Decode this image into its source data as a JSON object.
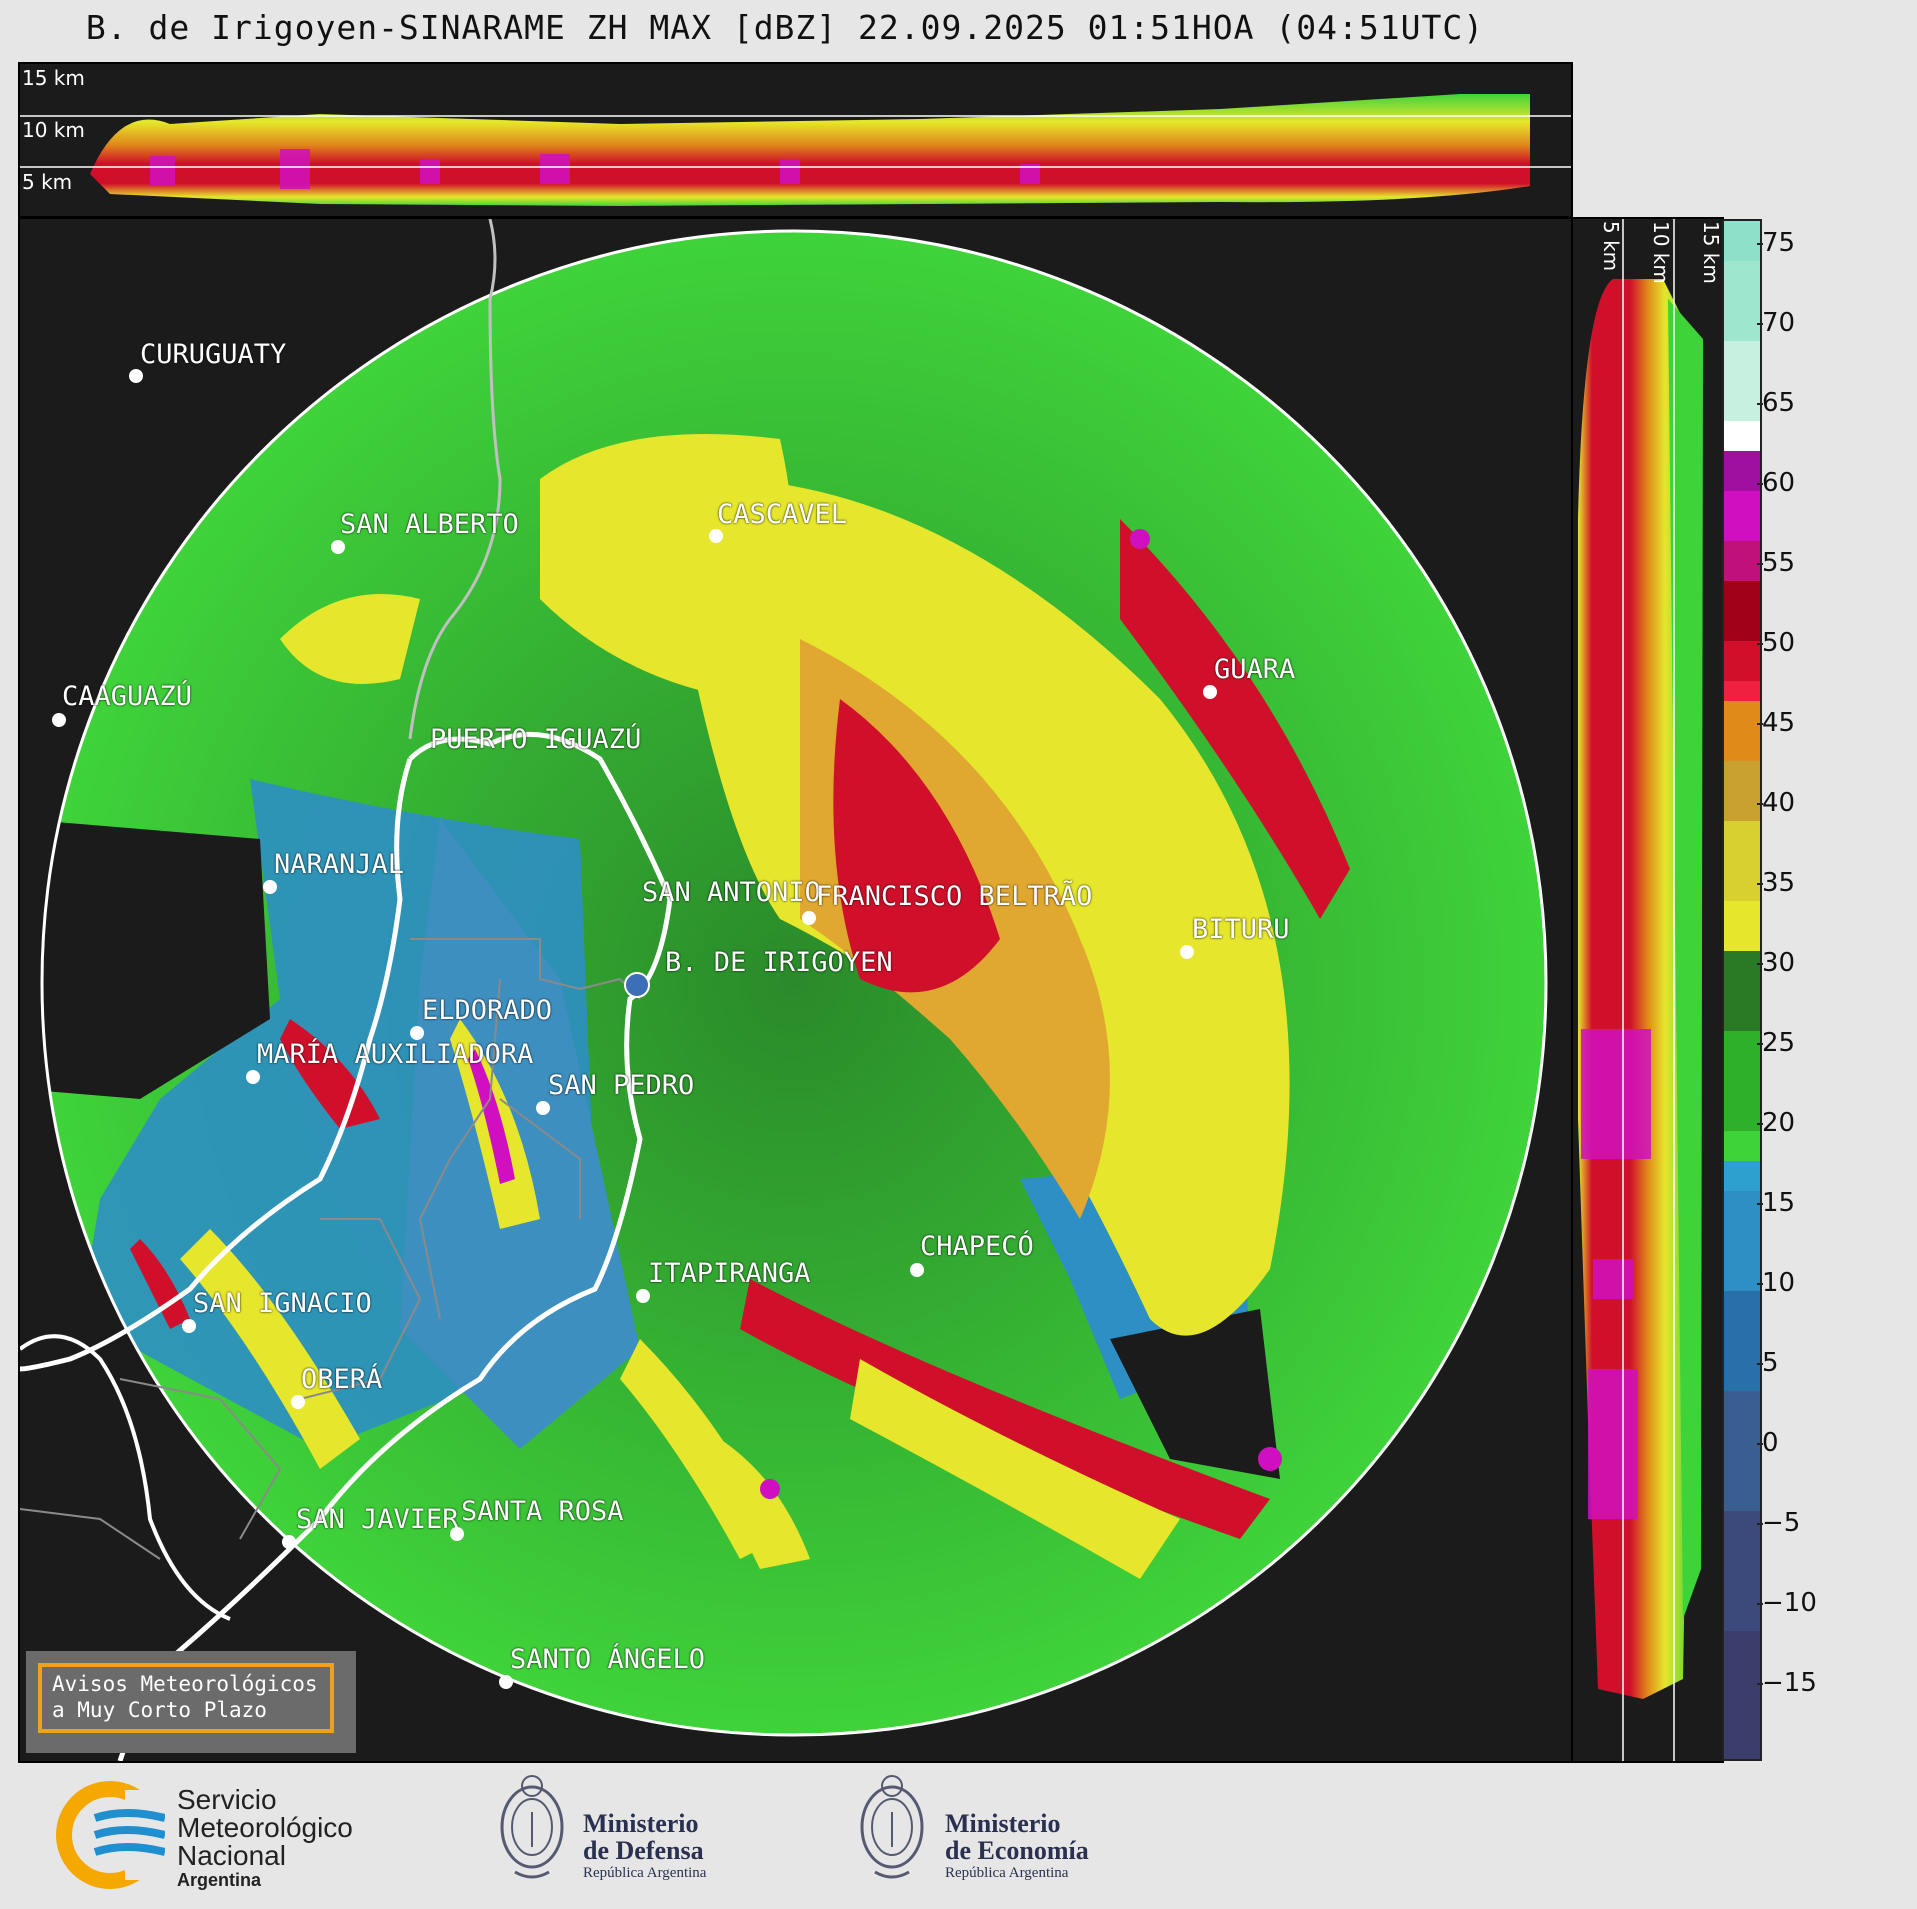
{
  "title": "B. de Irigoyen-SINARAME ZH MAX [dBZ] 22.09.2025 01:51HOA (04:51UTC)",
  "top_panel": {
    "height_labels": [
      "15 km",
      "10 km",
      "5 km"
    ]
  },
  "side_panel": {
    "height_labels": [
      "5 km",
      "10 km",
      "15 km"
    ]
  },
  "colorbar": {
    "ticks": [
      "75",
      "70",
      "65",
      "60",
      "55",
      "50",
      "45",
      "40",
      "35",
      "30",
      "25",
      "20",
      "15",
      "10",
      "5",
      "0",
      "−5",
      "−10",
      "−15"
    ],
    "colors": {
      "dark_low": "#3b3d6b",
      "blue": "#2e8fc4",
      "green": "#3fd33a",
      "dark_green": "#2a7a25",
      "yellow": "#e6e62c",
      "orange": "#e08a1a",
      "red": "#d0102a",
      "magenta": "#d010c0",
      "white": "#ffffff",
      "teal": "#8fe0c8"
    }
  },
  "cities": [
    {
      "name": "CURUGUATY"
    },
    {
      "name": "SAN ALBERTO"
    },
    {
      "name": "CASCAVEL"
    },
    {
      "name": "CAAGUAZÚ"
    },
    {
      "name": "GUARA"
    },
    {
      "name": "PUERTO IGUAZÚ"
    },
    {
      "name": "NARANJAL"
    },
    {
      "name": "SAN ANTONIO"
    },
    {
      "name": "FRANCISCO BELTRÃO"
    },
    {
      "name": "BITURU"
    },
    {
      "name": "B. DE IRIGOYEN"
    },
    {
      "name": "ELDORADO"
    },
    {
      "name": "MARÍA AUXILIADORA"
    },
    {
      "name": "SAN PEDRO"
    },
    {
      "name": "CHAPECÓ"
    },
    {
      "name": "ITAPIRANGA"
    },
    {
      "name": "SAN IGNACIO"
    },
    {
      "name": "OBERÁ"
    },
    {
      "name": "SAN JAVIER"
    },
    {
      "name": "SANTA ROSA"
    },
    {
      "name": "SANTO ÁNGELO"
    }
  ],
  "avisos": {
    "line1": "Avisos Meteorológicos",
    "line2": "a Muy Corto Plazo"
  },
  "logos": {
    "smn": {
      "line1": "Servicio",
      "line2": "Meteorológico",
      "line3": "Nacional",
      "line4": "Argentina"
    },
    "defensa": {
      "line1": "Ministerio",
      "line2": "de Defensa",
      "line3": "República Argentina"
    },
    "economia": {
      "line1": "Ministerio",
      "line2": "de Economía",
      "line3": "República Argentina"
    }
  }
}
